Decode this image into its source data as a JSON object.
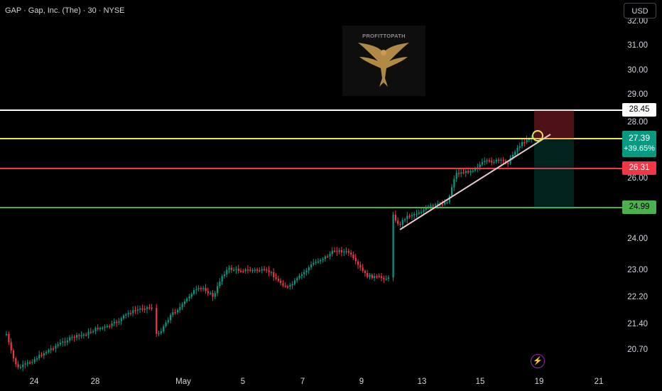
{
  "header": {
    "title": "GAP · Gap, Inc. (The) · 30 · NYSE",
    "currency": "USD"
  },
  "watermark": {
    "text": "PROFITTOPATH"
  },
  "price_axis": {
    "ticks": [
      "32.00",
      "31.00",
      "30.00",
      "29.00",
      "28.00",
      "26.00",
      "24.00",
      "23.00",
      "22.20",
      "21.40",
      "20.70"
    ]
  },
  "time_axis": {
    "ticks": [
      "24",
      "28",
      "May",
      "5",
      "7",
      "9",
      "13",
      "15",
      "19",
      "21"
    ]
  },
  "levels": [
    {
      "label": "28.45",
      "price": 28.45,
      "color": "#ffffff",
      "text_color": "#000000"
    },
    {
      "label": "27.39",
      "price": 27.39,
      "color": "#e8e55c",
      "text_color": "#000000"
    },
    {
      "label": "26.31",
      "price": 26.31,
      "color": "#f23645",
      "text_color": "#ffffff"
    },
    {
      "label": "24.99",
      "price": 24.99,
      "color": "#4caf50",
      "text_color": "#000000"
    }
  ],
  "last_price": {
    "price": "27.39",
    "change": "+39.65%",
    "color": "#089981"
  },
  "colors": {
    "up": "#089981",
    "down": "#f23645",
    "trendline": "#e8c9cf",
    "marker": "#e8e55c"
  }
}
